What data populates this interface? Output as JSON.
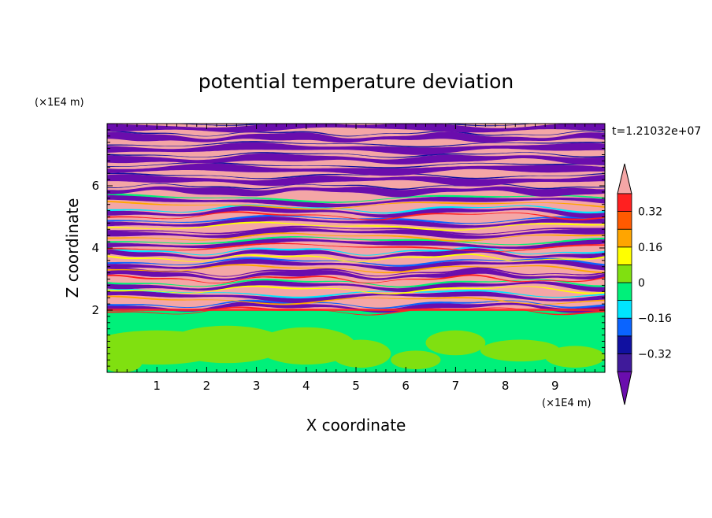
{
  "chart_data": {
    "type": "heatmap",
    "title": "potential temperature deviation",
    "xlabel": "X coordinate",
    "ylabel": "Z coordinate",
    "x_unit": "(×1E4 m)",
    "y_unit": "(×1E4 m)",
    "time_label": "t=1.21032e+07",
    "xlim": [
      0,
      10
    ],
    "ylim": [
      0,
      8
    ],
    "x_ticks": [
      "1",
      "2",
      "3",
      "4",
      "5",
      "6",
      "7",
      "8",
      "9"
    ],
    "y_ticks": [
      "2",
      "4",
      "6"
    ],
    "colorbar": {
      "levels": [
        -0.4,
        -0.32,
        -0.24,
        -0.16,
        -0.08,
        0,
        0.08,
        0.16,
        0.24,
        0.32,
        0.4
      ],
      "tick_labels": [
        "0.32",
        "0.16",
        "0",
        "−0.16",
        "−0.32"
      ],
      "tick_values": [
        0.32,
        0.16,
        0,
        -0.16,
        -0.32
      ],
      "colors": [
        "#6a0dad",
        "#3f1a9a",
        "#1010a0",
        "#0a64ff",
        "#00e5ff",
        "#00f07a",
        "#80e010",
        "#ffff00",
        "#ffa500",
        "#ff5a00",
        "#ff2020",
        "#f4a6a6"
      ],
      "extend": "both"
    }
  }
}
